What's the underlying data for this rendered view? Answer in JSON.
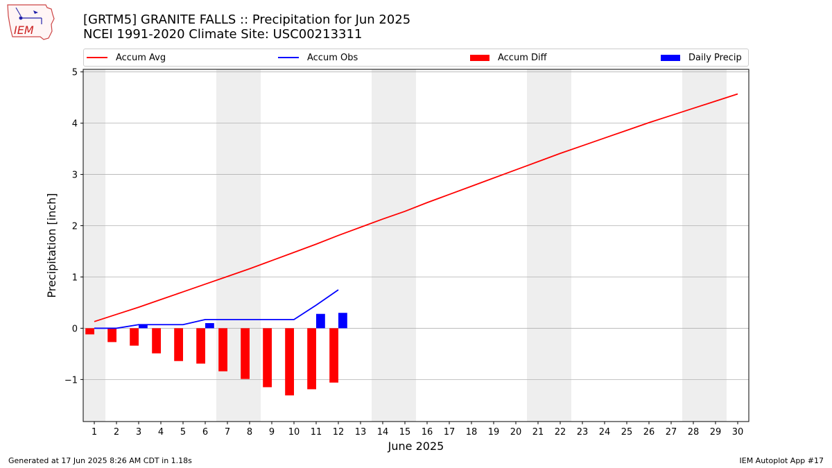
{
  "title_line1": "[GRTM5] GRANITE FALLS :: Precipitation for Jun 2025",
  "title_line2": "NCEI 1991-2020 Climate Site: USC00213311",
  "logo_text": "IEM",
  "footer_left": "Generated at 17 Jun 2025 8:26 AM CDT in 1.18s",
  "footer_right": "IEM Autoplot App #17",
  "legend": [
    {
      "label": "Accum Avg",
      "color": "#ff0000",
      "kind": "line"
    },
    {
      "label": "Accum Obs",
      "color": "#0000ff",
      "kind": "line"
    },
    {
      "label": "Accum Diff",
      "color": "#ff0000",
      "kind": "bar"
    },
    {
      "label": "Daily Precip",
      "color": "#0000ff",
      "kind": "bar"
    }
  ],
  "chart_data": {
    "type": "bar",
    "xlabel": "June 2025",
    "ylabel": "Precipitation [inch]",
    "xlim": [
      0.5,
      30.5
    ],
    "ylim": [
      -1.82,
      5.05
    ],
    "yticks": [
      -1,
      0,
      1,
      2,
      3,
      4,
      5
    ],
    "ytick_labels": [
      "−1",
      "0",
      "1",
      "2",
      "3",
      "4",
      "5"
    ],
    "x": [
      1,
      2,
      3,
      4,
      5,
      6,
      7,
      8,
      9,
      10,
      11,
      12,
      13,
      14,
      15,
      16,
      17,
      18,
      19,
      20,
      21,
      22,
      23,
      24,
      25,
      26,
      27,
      28,
      29,
      30
    ],
    "weekend_days": [
      1,
      7,
      8,
      14,
      15,
      21,
      22,
      28,
      29
    ],
    "grid": "horizontal",
    "legend_position": "top",
    "series": [
      {
        "name": "Accum Avg",
        "type": "line",
        "color": "#ff0000",
        "x": [
          1,
          2,
          3,
          4,
          5,
          6,
          7,
          8,
          9,
          10,
          11,
          12,
          13,
          14,
          15,
          16,
          17,
          18,
          19,
          20,
          21,
          22,
          23,
          24,
          25,
          26,
          27,
          28,
          29,
          30
        ],
        "values": [
          0.13,
          0.27,
          0.41,
          0.56,
          0.71,
          0.86,
          1.01,
          1.16,
          1.32,
          1.48,
          1.64,
          1.81,
          1.97,
          2.13,
          2.28,
          2.45,
          2.61,
          2.77,
          2.93,
          3.09,
          3.25,
          3.41,
          3.56,
          3.71,
          3.86,
          4.01,
          4.15,
          4.29,
          4.43,
          4.57
        ]
      },
      {
        "name": "Accum Obs",
        "type": "line",
        "color": "#0000ff",
        "x": [
          1,
          2,
          3,
          4,
          5,
          6,
          7,
          8,
          9,
          10,
          11,
          12
        ],
        "values": [
          0.0,
          0.0,
          0.07,
          0.07,
          0.07,
          0.17,
          0.17,
          0.17,
          0.17,
          0.17,
          0.45,
          0.75
        ]
      },
      {
        "name": "Accum Diff",
        "type": "bar",
        "color": "#ff0000",
        "offset": -0.2,
        "x": [
          1,
          2,
          3,
          4,
          5,
          6,
          7,
          8,
          9,
          10,
          11,
          12
        ],
        "values": [
          -0.12,
          -0.27,
          -0.34,
          -0.49,
          -0.64,
          -0.69,
          -0.84,
          -0.99,
          -1.15,
          -1.31,
          -1.19,
          -1.06
        ]
      },
      {
        "name": "Daily Precip",
        "type": "bar",
        "color": "#0000ff",
        "offset": 0.2,
        "x": [
          1,
          2,
          3,
          4,
          5,
          6,
          7,
          8,
          9,
          10,
          11,
          12
        ],
        "values": [
          0.0,
          0.0,
          0.07,
          0.0,
          0.0,
          0.1,
          0.0,
          0.0,
          0.0,
          0.0,
          0.28,
          0.3
        ]
      }
    ]
  }
}
